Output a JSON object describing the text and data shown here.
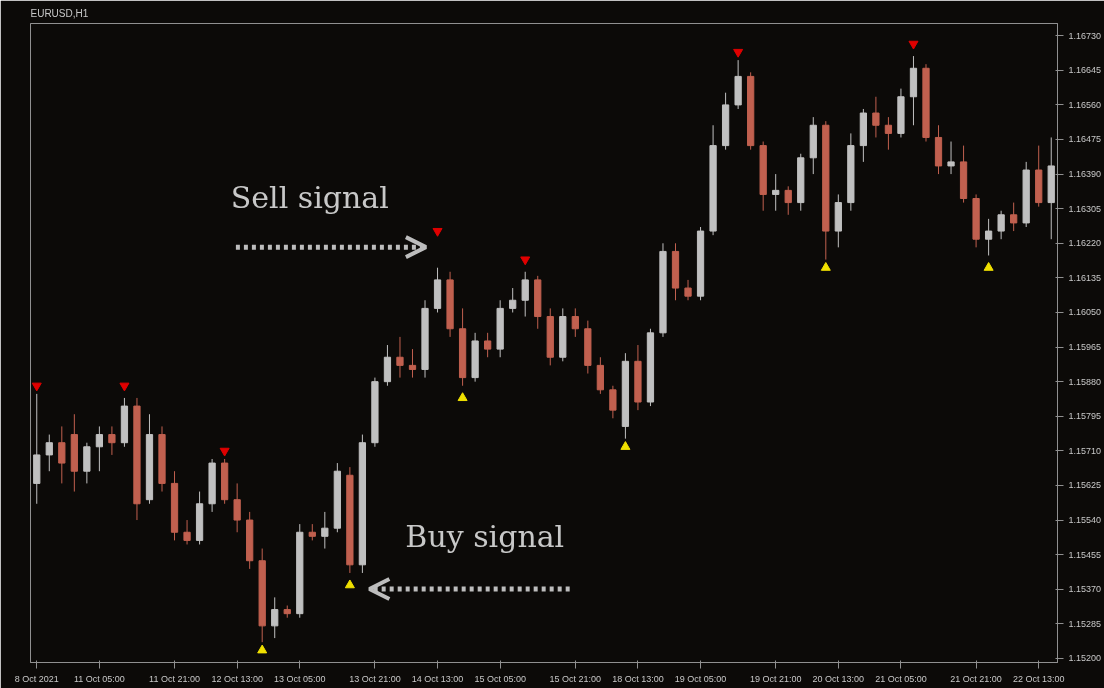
{
  "chart_data": {
    "type": "candlestick",
    "title": "EURUSD,H1",
    "categories": [
      "8 Oct 2021",
      null,
      null,
      null,
      null,
      "11 Oct 05:00",
      null,
      null,
      null,
      null,
      null,
      "11 Oct 21:00",
      null,
      null,
      null,
      null,
      "12 Oct 13:00",
      null,
      null,
      null,
      null,
      "13 Oct 05:00",
      null,
      null,
      null,
      null,
      null,
      "13 Oct 21:00",
      null,
      null,
      null,
      null,
      "14 Oct 13:00",
      null,
      null,
      null,
      null,
      "15 Oct 05:00",
      null,
      null,
      null,
      null,
      null,
      "15 Oct 21:00",
      null,
      null,
      null,
      null,
      "18 Oct 13:00",
      null,
      null,
      null,
      null,
      "19 Oct 05:00",
      null,
      null,
      null,
      null,
      null,
      "19 Oct 21:00",
      null,
      null,
      null,
      null,
      "20 Oct 13:00",
      null,
      null,
      null,
      null,
      "21 Oct 05:00",
      null,
      null,
      null,
      null,
      null,
      "21 Oct 21:00",
      null,
      null,
      null,
      null,
      "22 Oct 13:00",
      null
    ],
    "ohlc": [
      [
        1.1563,
        1.1585,
        1.1558,
        1.157
      ],
      [
        1.157,
        1.1575,
        1.1566,
        1.1573
      ],
      [
        1.1573,
        1.1577,
        1.1563,
        1.1568
      ],
      [
        1.1575,
        1.158,
        1.1561,
        1.1566
      ],
      [
        1.1566,
        1.1573,
        1.1563,
        1.1572
      ],
      [
        1.1572,
        1.1577,
        1.1566,
        1.1575
      ],
      [
        1.1575,
        1.1577,
        1.157,
        1.1573
      ],
      [
        1.1573,
        1.1584,
        1.1572,
        1.1582
      ],
      [
        1.1582,
        1.1584,
        1.1554,
        1.1558
      ],
      [
        1.1559,
        1.158,
        1.1558,
        1.1575
      ],
      [
        1.1575,
        1.1577,
        1.1561,
        1.1563
      ],
      [
        1.1563,
        1.1566,
        1.1549,
        1.1551
      ],
      [
        1.1551,
        1.1554,
        1.1548,
        1.1549
      ],
      [
        1.1549,
        1.1561,
        1.1548,
        1.1558
      ],
      [
        1.1558,
        1.1569,
        1.1556,
        1.1568
      ],
      [
        1.1568,
        1.1569,
        1.1558,
        1.1559
      ],
      [
        1.1559,
        1.1563,
        1.1551,
        1.1554
      ],
      [
        1.1554,
        1.1556,
        1.1542,
        1.1544
      ],
      [
        1.1544,
        1.1547,
        1.1524,
        1.1528
      ],
      [
        1.1528,
        1.1535,
        1.1525,
        1.1532
      ],
      [
        1.1532,
        1.1533,
        1.153,
        1.1531
      ],
      [
        1.1531,
        1.1553,
        1.153,
        1.1551
      ],
      [
        1.1551,
        1.1553,
        1.1549,
        1.155
      ],
      [
        1.155,
        1.1556,
        1.1547,
        1.1552
      ],
      [
        1.1552,
        1.1568,
        1.1551,
        1.1566
      ],
      [
        1.1565,
        1.1567,
        1.1541,
        1.1543
      ],
      [
        1.1543,
        1.1575,
        1.1541,
        1.1573
      ],
      [
        1.1573,
        1.1589,
        1.1572,
        1.1588
      ],
      [
        1.1588,
        1.1597,
        1.1587,
        1.1594
      ],
      [
        1.1594,
        1.1599,
        1.1589,
        1.1592
      ],
      [
        1.1592,
        1.1596,
        1.1589,
        1.1591
      ],
      [
        1.1591,
        1.1608,
        1.1589,
        1.1606
      ],
      [
        1.1606,
        1.1616,
        1.1605,
        1.1613
      ],
      [
        1.1613,
        1.1615,
        1.1599,
        1.1601
      ],
      [
        1.1601,
        1.1606,
        1.1587,
        1.1589
      ],
      [
        1.1589,
        1.16,
        1.1588,
        1.1598
      ],
      [
        1.1598,
        1.16,
        1.1594,
        1.1596
      ],
      [
        1.1596,
        1.1608,
        1.1594,
        1.1606
      ],
      [
        1.1606,
        1.1611,
        1.1605,
        1.1608
      ],
      [
        1.1608,
        1.1615,
        1.1604,
        1.1613
      ],
      [
        1.1613,
        1.1614,
        1.1601,
        1.1604
      ],
      [
        1.1604,
        1.1606,
        1.1592,
        1.1594
      ],
      [
        1.1594,
        1.1606,
        1.1593,
        1.1604
      ],
      [
        1.1604,
        1.1606,
        1.1599,
        1.1601
      ],
      [
        1.1601,
        1.1603,
        1.159,
        1.1592
      ],
      [
        1.1592,
        1.1594,
        1.1585,
        1.1586
      ],
      [
        1.1586,
        1.1587,
        1.1579,
        1.1581
      ],
      [
        1.1577,
        1.1595,
        1.1574,
        1.1593
      ],
      [
        1.1593,
        1.1597,
        1.1581,
        1.1583
      ],
      [
        1.1583,
        1.1601,
        1.1582,
        1.16
      ],
      [
        1.16,
        1.1622,
        1.1599,
        1.162
      ],
      [
        1.162,
        1.1622,
        1.1608,
        1.1611
      ],
      [
        1.1611,
        1.1613,
        1.1608,
        1.1609
      ],
      [
        1.1609,
        1.1626,
        1.1608,
        1.1625
      ],
      [
        1.1625,
        1.1651,
        1.1624,
        1.1646
      ],
      [
        1.1646,
        1.1659,
        1.1645,
        1.1656
      ],
      [
        1.1656,
        1.1667,
        1.1655,
        1.1663
      ],
      [
        1.1663,
        1.1664,
        1.1645,
        1.1646
      ],
      [
        1.1646,
        1.1647,
        1.163,
        1.1634
      ],
      [
        1.1634,
        1.1639,
        1.163,
        1.1635
      ],
      [
        1.1635,
        1.1636,
        1.1629,
        1.1632
      ],
      [
        1.1632,
        1.1644,
        1.163,
        1.1643
      ],
      [
        1.1643,
        1.1653,
        1.1639,
        1.1651
      ],
      [
        1.1651,
        1.1652,
        1.1618,
        1.1625
      ],
      [
        1.1625,
        1.1634,
        1.1621,
        1.1632
      ],
      [
        1.1632,
        1.1649,
        1.163,
        1.1646
      ],
      [
        1.1646,
        1.1655,
        1.1642,
        1.1654
      ],
      [
        1.1654,
        1.1658,
        1.1648,
        1.1651
      ],
      [
        1.1651,
        1.1653,
        1.1645,
        1.1649
      ],
      [
        1.1649,
        1.166,
        1.1648,
        1.1658
      ],
      [
        1.1658,
        1.1668,
        1.1651,
        1.1665
      ],
      [
        1.1665,
        1.1666,
        1.1647,
        1.1648
      ],
      [
        1.1648,
        1.1651,
        1.1639,
        1.1641
      ],
      [
        1.1641,
        1.1647,
        1.1639,
        1.1642
      ],
      [
        1.1642,
        1.1646,
        1.1632,
        1.1633
      ],
      [
        1.1633,
        1.1634,
        1.1621,
        1.1623
      ],
      [
        1.1623,
        1.1628,
        1.1619,
        1.1625
      ],
      [
        1.1625,
        1.163,
        1.1623,
        1.1629
      ],
      [
        1.1629,
        1.1632,
        1.1625,
        1.1627
      ],
      [
        1.1627,
        1.1642,
        1.1626,
        1.164
      ],
      [
        1.164,
        1.1646,
        1.1631,
        1.1632
      ],
      [
        1.1632,
        1.1648,
        1.1623,
        1.1641
      ]
    ],
    "colors": [
      "#c0c0c0",
      "#c0c0c0",
      "#c1604f",
      "#c1604f",
      "#c0c0c0",
      "#c0c0c0",
      "#c1604f",
      "#c0c0c0",
      "#c1604f",
      "#c0c0c0",
      "#c1604f",
      "#c1604f",
      "#c1604f",
      "#c0c0c0",
      "#c0c0c0",
      "#c1604f",
      "#c1604f",
      "#c1604f",
      "#c1604f",
      "#c0c0c0",
      "#c1604f",
      "#c0c0c0",
      "#c1604f",
      "#c0c0c0",
      "#c0c0c0",
      "#c1604f",
      "#c0c0c0",
      "#c0c0c0",
      "#c0c0c0",
      "#c1604f",
      "#c1604f",
      "#c0c0c0",
      "#c0c0c0",
      "#c1604f",
      "#c1604f",
      "#c0c0c0",
      "#c1604f",
      "#c0c0c0",
      "#c0c0c0",
      "#c0c0c0",
      "#c1604f",
      "#c1604f",
      "#c0c0c0",
      "#c1604f",
      "#c1604f",
      "#c1604f",
      "#c1604f",
      "#c0c0c0",
      "#c1604f",
      "#c0c0c0",
      "#c0c0c0",
      "#c1604f",
      "#c1604f",
      "#c0c0c0",
      "#c0c0c0",
      "#c0c0c0",
      "#c0c0c0",
      "#c1604f",
      "#c1604f",
      "#c0c0c0",
      "#c1604f",
      "#c0c0c0",
      "#c0c0c0",
      "#c1604f",
      "#c0c0c0",
      "#c0c0c0",
      "#c0c0c0",
      "#c1604f",
      "#c1604f",
      "#c0c0c0",
      "#c0c0c0",
      "#c1604f",
      "#c1604f",
      "#c0c0c0",
      "#c1604f",
      "#c1604f",
      "#c0c0c0",
      "#c0c0c0",
      "#c1604f",
      "#c0c0c0",
      "#c1604f",
      "#c0c0c0"
    ],
    "series": [
      {
        "type": "scatter",
        "marker": "triangle_down",
        "color": "#e00000",
        "values": [
          1.1587,
          null,
          null,
          null,
          null,
          null,
          null,
          1.1587,
          null,
          null,
          null,
          null,
          null,
          null,
          null,
          1.1571,
          null,
          null,
          null,
          null,
          null,
          null,
          null,
          null,
          null,
          null,
          null,
          null,
          null,
          null,
          null,
          null,
          1.1625,
          null,
          null,
          null,
          null,
          null,
          null,
          1.1618,
          null,
          null,
          null,
          null,
          null,
          null,
          null,
          null,
          null,
          null,
          null,
          null,
          null,
          null,
          null,
          null,
          1.1669,
          null,
          null,
          null,
          null,
          null,
          null,
          null,
          null,
          null,
          null,
          null,
          null,
          null,
          1.1671,
          null,
          null,
          null,
          null,
          null,
          null,
          null,
          null,
          null,
          null,
          null
        ]
      },
      {
        "type": "scatter",
        "marker": "triangle",
        "color": "#f0e000",
        "values": [
          null,
          null,
          null,
          null,
          null,
          null,
          null,
          null,
          null,
          null,
          null,
          null,
          null,
          null,
          null,
          null,
          null,
          null,
          1.1522,
          null,
          null,
          null,
          null,
          null,
          null,
          1.1538,
          null,
          null,
          null,
          null,
          null,
          null,
          null,
          null,
          1.1584,
          null,
          null,
          null,
          null,
          null,
          null,
          null,
          null,
          null,
          null,
          null,
          null,
          1.1572,
          null,
          null,
          null,
          null,
          null,
          null,
          null,
          null,
          null,
          null,
          null,
          null,
          null,
          null,
          null,
          1.1616,
          null,
          null,
          null,
          null,
          null,
          null,
          null,
          null,
          null,
          null,
          null,
          null,
          1.1616,
          null,
          null,
          null,
          null,
          null
        ]
      }
    ],
    "annotations": [
      "Sell signal",
      "Buy signal"
    ],
    "ylim": [
      1.1519,
      1.1676
    ],
    "yticks": [
      {
        "value": 1.152,
        "label": "1.15200"
      },
      {
        "value": 1.15285,
        "label": "1.15285"
      },
      {
        "value": 1.1537,
        "label": "1.15370"
      },
      {
        "value": 1.15455,
        "label": "1.15455"
      },
      {
        "value": 1.1554,
        "label": "1.15540"
      },
      {
        "value": 1.15625,
        "label": "1.15625"
      },
      {
        "value": 1.1571,
        "label": "1.15710"
      },
      {
        "value": 1.15795,
        "label": "1.15795"
      },
      {
        "value": 1.1588,
        "label": "1.15880"
      },
      {
        "value": 1.15965,
        "label": "1.15965"
      },
      {
        "value": 1.1605,
        "label": "1.16050"
      },
      {
        "value": 1.16135,
        "label": "1.16135"
      },
      {
        "value": 1.1622,
        "label": "1.16220"
      },
      {
        "value": 1.16305,
        "label": "1.16305"
      },
      {
        "value": 1.1639,
        "label": "1.16390"
      },
      {
        "value": 1.16475,
        "label": "1.16475"
      },
      {
        "value": 1.1656,
        "label": "1.16560"
      },
      {
        "value": 1.16645,
        "label": "1.16645"
      },
      {
        "value": 1.1673,
        "label": "1.16730"
      }
    ]
  }
}
